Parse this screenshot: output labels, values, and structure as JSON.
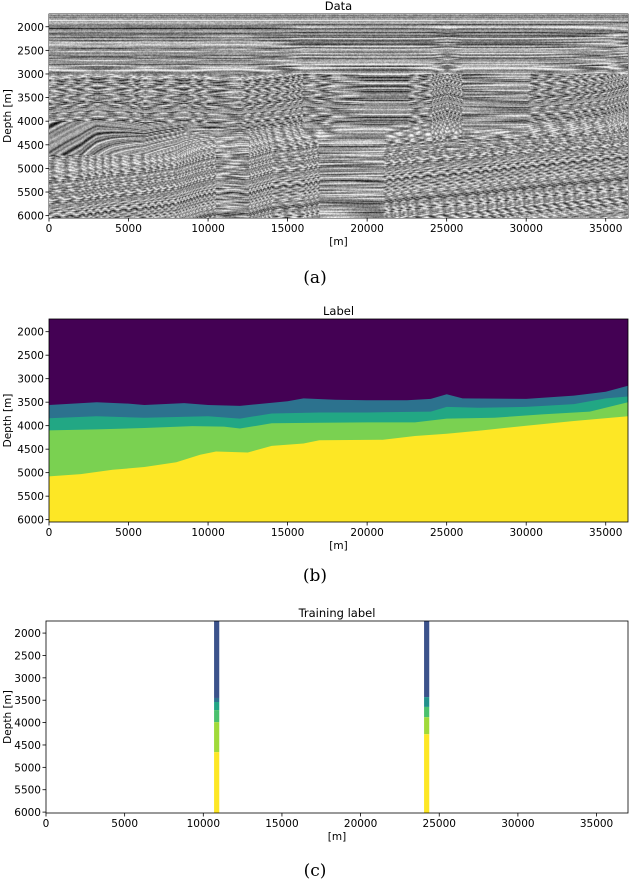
{
  "chart_data": [
    {
      "type": "heatmap",
      "title": "Data",
      "xlabel": "[m]",
      "ylabel": "Depth [m]",
      "caption": "(a)",
      "colormap": "gray",
      "xlim": [
        0,
        36400
      ],
      "ylim": [
        6050,
        1730
      ],
      "xticks": [
        0,
        5000,
        10000,
        15000,
        20000,
        25000,
        30000,
        35000
      ],
      "yticks": [
        2000,
        2500,
        3000,
        3500,
        4000,
        4500,
        5000,
        5500,
        6000
      ]
    },
    {
      "type": "heatmap",
      "title": "Label",
      "xlabel": "[m]",
      "ylabel": "Depth [m]",
      "caption": "(b)",
      "xlim": [
        0,
        36400
      ],
      "ylim": [
        6050,
        1730
      ],
      "xticks": [
        0,
        5000,
        10000,
        15000,
        20000,
        25000,
        30000,
        35000
      ],
      "yticks": [
        2000,
        2500,
        3000,
        3500,
        4000,
        4500,
        5000,
        5500,
        6000
      ],
      "class_colors": [
        "#440154",
        "#2c728e",
        "#22a784",
        "#7ad151",
        "#fde725"
      ],
      "boundaries": [
        {
          "x": [
            0,
            3000,
            5000,
            6000,
            8500,
            10000,
            12000,
            15000,
            16000,
            18000,
            20000,
            22500,
            24000,
            25000,
            26000,
            30000,
            33000,
            35000,
            36400
          ],
          "depth": [
            3560,
            3500,
            3530,
            3560,
            3520,
            3560,
            3580,
            3480,
            3420,
            3450,
            3460,
            3460,
            3430,
            3330,
            3420,
            3430,
            3360,
            3280,
            3150
          ]
        },
        {
          "x": [
            0,
            3000,
            6000,
            10000,
            12000,
            14000,
            17000,
            20000,
            24000,
            25000,
            27000,
            30000,
            33000,
            35000,
            36400
          ],
          "depth": [
            3840,
            3800,
            3830,
            3800,
            3850,
            3740,
            3720,
            3720,
            3700,
            3600,
            3620,
            3600,
            3540,
            3420,
            3380
          ]
        },
        {
          "x": [
            0,
            3000,
            6000,
            9000,
            11000,
            12000,
            14000,
            17000,
            20000,
            23000,
            25000,
            28000,
            31000,
            34000,
            36400
          ],
          "depth": [
            4100,
            4080,
            4050,
            4010,
            4020,
            4060,
            3950,
            3940,
            3930,
            3930,
            3850,
            3830,
            3760,
            3700,
            3500
          ]
        },
        {
          "x": [
            0,
            2000,
            4000,
            6000,
            8000,
            9500,
            10500,
            12500,
            14000,
            16000,
            17000,
            21000,
            23000,
            25000,
            27000,
            30000,
            33000,
            36400
          ],
          "depth": [
            5080,
            5030,
            4940,
            4880,
            4780,
            4620,
            4550,
            4570,
            4430,
            4380,
            4310,
            4300,
            4220,
            4170,
            4110,
            4000,
            3900,
            3800
          ]
        }
      ]
    },
    {
      "type": "heatmap",
      "title": "Training label",
      "xlabel": "[m]",
      "ylabel": "Depth [m]",
      "caption": "(c)",
      "xlim": [
        0,
        37000
      ],
      "ylim": [
        6020,
        1730
      ],
      "xticks": [
        0,
        5000,
        10000,
        15000,
        20000,
        25000,
        30000,
        35000
      ],
      "yticks": [
        2000,
        2500,
        3000,
        3500,
        4000,
        4500,
        5000,
        5500,
        6000
      ],
      "wells": [
        {
          "x": 10850,
          "width": 330,
          "intervals": [
            {
              "top": 1730,
              "bottom": 3450,
              "color": "#3b528b"
            },
            {
              "top": 3450,
              "bottom": 3540,
              "color": "#2c728e"
            },
            {
              "top": 3540,
              "bottom": 3720,
              "color": "#21a585"
            },
            {
              "top": 3720,
              "bottom": 3990,
              "color": "#4ac16d"
            },
            {
              "top": 3990,
              "bottom": 4660,
              "color": "#a0da39"
            },
            {
              "top": 4660,
              "bottom": 6020,
              "color": "#fde725"
            }
          ]
        },
        {
          "x": 24200,
          "width": 330,
          "intervals": [
            {
              "top": 1730,
              "bottom": 3430,
              "color": "#3b528b"
            },
            {
              "top": 3430,
              "bottom": 3650,
              "color": "#21918c"
            },
            {
              "top": 3650,
              "bottom": 3880,
              "color": "#4ac16d"
            },
            {
              "top": 3880,
              "bottom": 4260,
              "color": "#a0da39"
            },
            {
              "top": 4260,
              "bottom": 6020,
              "color": "#fde725"
            }
          ]
        }
      ]
    }
  ]
}
